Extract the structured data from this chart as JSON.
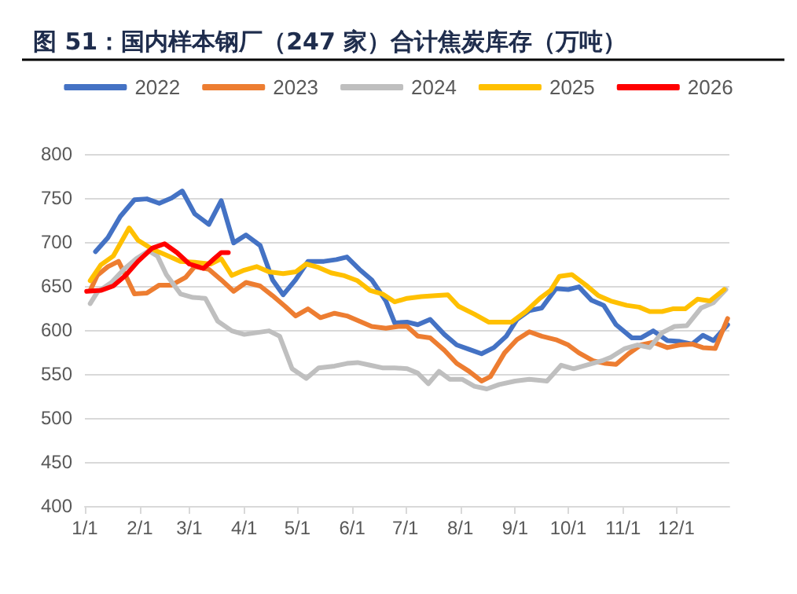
{
  "chart_data": {
    "type": "line",
    "title": "图 51：国内样本钢厂（247 家）合计焦炭库存（万吨）",
    "xlim": [
      "--01-01",
      "--12-31"
    ],
    "xticks": [
      {
        "value": "--01-01",
        "label": "1/1"
      },
      {
        "value": "--02-01",
        "label": "2/1"
      },
      {
        "value": "--03-01",
        "label": "3/1"
      },
      {
        "value": "--04-01",
        "label": "4/1"
      },
      {
        "value": "--05-01",
        "label": "5/1"
      },
      {
        "value": "--06-01",
        "label": "6/1"
      },
      {
        "value": "--07-01",
        "label": "7/1"
      },
      {
        "value": "--08-01",
        "label": "8/1"
      },
      {
        "value": "--09-01",
        "label": "9/1"
      },
      {
        "value": "--10-01",
        "label": "10/1"
      },
      {
        "value": "--11-01",
        "label": "11/1"
      },
      {
        "value": "--12-01",
        "label": "12/1"
      }
    ],
    "ylim": [
      400,
      800
    ],
    "yticks": [
      400,
      450,
      500,
      550,
      600,
      650,
      700,
      750,
      800
    ],
    "grid": "y",
    "legend": "top",
    "marker": "none",
    "line_style": "solid",
    "series": [
      {
        "name": "2022",
        "color": "#4472c4",
        "x": [
          "--01-07",
          "--01-14",
          "--01-21",
          "--01-29",
          "--02-05",
          "--02-12",
          "--02-19",
          "--02-25",
          "--03-04",
          "--03-12",
          "--03-19",
          "--03-26",
          "--04-02",
          "--04-10",
          "--04-17",
          "--04-23",
          "--04-30",
          "--05-07",
          "--05-16",
          "--05-23",
          "--05-29",
          "--06-05",
          "--06-12",
          "--06-20",
          "--06-25",
          "--07-02",
          "--07-08",
          "--07-15",
          "--07-23",
          "--07-30",
          "--08-06",
          "--08-13",
          "--08-20",
          "--08-27",
          "--09-02",
          "--09-09",
          "--09-16",
          "--09-24",
          "--10-01",
          "--10-07",
          "--10-14",
          "--10-21",
          "--10-28",
          "--11-06",
          "--11-11",
          "--11-18",
          "--11-26",
          "--12-03",
          "--12-10",
          "--12-16",
          "--12-22",
          "--12-30"
        ],
        "values": [
          689,
          705,
          729,
          748,
          749,
          744,
          750,
          758,
          732,
          720,
          747,
          699,
          708,
          696,
          657,
          640,
          657,
          678,
          678,
          680,
          683,
          669,
          657,
          633,
          608,
          609,
          606,
          612,
          595,
          583,
          578,
          573,
          580,
          593,
          612,
          622,
          625,
          647,
          646,
          649,
          634,
          628,
          606,
          591,
          591,
          599,
          588,
          587,
          584,
          594,
          588,
          606
        ]
      },
      {
        "name": "2023",
        "color": "#ed7d31",
        "x": [
          "--01-04",
          "--01-08",
          "--01-14",
          "--01-20",
          "--01-24",
          "--01-29",
          "--02-05",
          "--02-12",
          "--02-19",
          "--02-27",
          "--03-04",
          "--03-12",
          "--03-19",
          "--03-26",
          "--04-02",
          "--04-10",
          "--04-17",
          "--04-24",
          "--04-30",
          "--05-07",
          "--05-14",
          "--05-22",
          "--05-29",
          "--06-05",
          "--06-12",
          "--06-20",
          "--06-27",
          "--07-02",
          "--07-08",
          "--07-15",
          "--07-23",
          "--07-30",
          "--08-06",
          "--08-13",
          "--08-18",
          "--08-26",
          "--09-02",
          "--09-09",
          "--09-16",
          "--09-24",
          "--10-01",
          "--10-07",
          "--10-15",
          "--10-22",
          "--10-28",
          "--11-04",
          "--11-11",
          "--11-18",
          "--11-26",
          "--12-03",
          "--12-10",
          "--12-16",
          "--12-23",
          "--12-30"
        ],
        "values": [
          645,
          662,
          672,
          678,
          662,
          641,
          642,
          651,
          651,
          660,
          672,
          669,
          657,
          644,
          654,
          650,
          639,
          627,
          616,
          624,
          614,
          619,
          616,
          610,
          604,
          602,
          604,
          604,
          593,
          591,
          577,
          562,
          553,
          542,
          547,
          574,
          589,
          598,
          593,
          589,
          583,
          574,
          565,
          562,
          561,
          573,
          583,
          586,
          580,
          583,
          584,
          580,
          579,
          613
        ]
      },
      {
        "name": "2024",
        "color": "#bfbfbf",
        "x": [
          "--01-04",
          "--01-08",
          "--01-16",
          "--01-23",
          "--01-30",
          "--02-06",
          "--02-11",
          "--02-16",
          "--02-24",
          "--03-03",
          "--03-10",
          "--03-17",
          "--03-25",
          "--04-01",
          "--04-08",
          "--04-15",
          "--04-21",
          "--04-28",
          "--05-06",
          "--05-13",
          "--05-22",
          "--05-29",
          "--06-04",
          "--06-11",
          "--06-18",
          "--06-25",
          "--07-02",
          "--07-08",
          "--07-14",
          "--07-20",
          "--07-26",
          "--08-02",
          "--08-09",
          "--08-16",
          "--08-23",
          "--09-01",
          "--09-09",
          "--09-19",
          "--09-27",
          "--10-04",
          "--10-11",
          "--10-20",
          "--10-25",
          "--11-02",
          "--11-09",
          "--11-16",
          "--11-23",
          "--11-30",
          "--12-07",
          "--12-15",
          "--12-22",
          "--12-29"
        ],
        "values": [
          630,
          643,
          654,
          669,
          681,
          690,
          684,
          663,
          641,
          637,
          636,
          610,
          599,
          595,
          597,
          599,
          593,
          556,
          545,
          557,
          559,
          562,
          563,
          560,
          557,
          557,
          556,
          551,
          539,
          553,
          544,
          544,
          536,
          533,
          538,
          542,
          544,
          542,
          560,
          556,
          560,
          565,
          569,
          579,
          583,
          580,
          597,
          604,
          605,
          625,
          631,
          646
        ]
      },
      {
        "name": "2025",
        "color": "#ffc000",
        "x": [
          "--01-04",
          "--01-10",
          "--01-17",
          "--01-26",
          "--01-31",
          "--02-08",
          "--02-15",
          "--02-24",
          "--03-04",
          "--03-13",
          "--03-19",
          "--03-25",
          "--04-01",
          "--04-08",
          "--04-15",
          "--04-23",
          "--04-30",
          "--05-06",
          "--05-13",
          "--05-20",
          "--05-27",
          "--06-04",
          "--06-11",
          "--06-18",
          "--06-25",
          "--07-02",
          "--07-10",
          "--07-18",
          "--07-25",
          "--07-31",
          "--08-09",
          "--08-17",
          "--08-30",
          "--09-07",
          "--09-15",
          "--09-21",
          "--09-26",
          "--10-03",
          "--10-11",
          "--10-18",
          "--10-25",
          "--11-03",
          "--11-10",
          "--11-16",
          "--11-23",
          "--11-29",
          "--12-06",
          "--12-13",
          "--12-20",
          "--12-28"
        ],
        "values": [
          656,
          674,
          684,
          716,
          702,
          692,
          686,
          678,
          677,
          675,
          681,
          662,
          668,
          672,
          666,
          664,
          666,
          675,
          671,
          665,
          662,
          656,
          645,
          641,
          632,
          636,
          638,
          639,
          640,
          627,
          618,
          609,
          609,
          621,
          636,
          645,
          661,
          663,
          651,
          639,
          633,
          628,
          626,
          621,
          621,
          624,
          624,
          635,
          633,
          646
        ]
      },
      {
        "name": "2026",
        "color": "#ff0000",
        "x": [
          "--01-02",
          "--01-10",
          "--01-17",
          "--01-24",
          "--01-31",
          "--02-08",
          "--02-15",
          "--02-22",
          "--03-01",
          "--03-09",
          "--03-15",
          "--03-19",
          "--03-23"
        ],
        "values": [
          644,
          645,
          650,
          662,
          678,
          693,
          698,
          688,
          675,
          670,
          681,
          688,
          688
        ]
      }
    ]
  }
}
